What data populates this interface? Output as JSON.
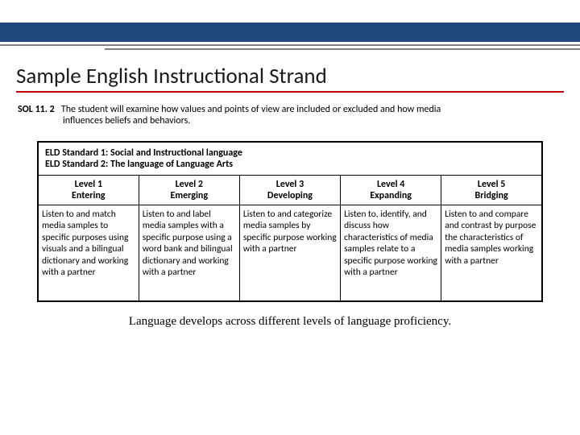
{
  "colors": {
    "topBand": "#1f497d",
    "titleUnderline": "#c00000",
    "grayLine": "#808080",
    "tableBorder": "#000000",
    "background": "#ffffff"
  },
  "title": "Sample English Instructional Strand",
  "sol": {
    "label": "SOL 11. 2",
    "line1": "The student will examine how values and points of view are included or excluded and how media",
    "line2": "influences beliefs and behaviors."
  },
  "eld": {
    "std1": "ELD Standard 1:  Social and Instructional language",
    "std2": "ELD Standard 2:  The language of Language Arts"
  },
  "levels": {
    "l1": {
      "num": "Level 1",
      "name": "Entering"
    },
    "l2": {
      "num": "Level 2",
      "name": "Emerging"
    },
    "l3": {
      "num": "Level 3",
      "name": "Developing"
    },
    "l4": {
      "num": "Level 4",
      "name": "Expanding"
    },
    "l5": {
      "num": "Level 5",
      "name": "Bridging"
    }
  },
  "desc": {
    "d1": "Listen to and match media samples to specific purposes using visuals and a bilingual dictionary and working with a partner",
    "d2": "Listen to and label media samples with a specific purpose using a word bank and bilingual dictionary and working with a partner",
    "d3": "Listen to and categorize media samples by specific purpose working with a partner",
    "d4": "Listen to, identify, and discuss how characteristics of media samples relate to a specific purpose working with a partner",
    "d5": "Listen to and compare and contrast by purpose the characteristics of media samples working with a partner"
  },
  "caption": "Language develops across different levels of language proficiency."
}
